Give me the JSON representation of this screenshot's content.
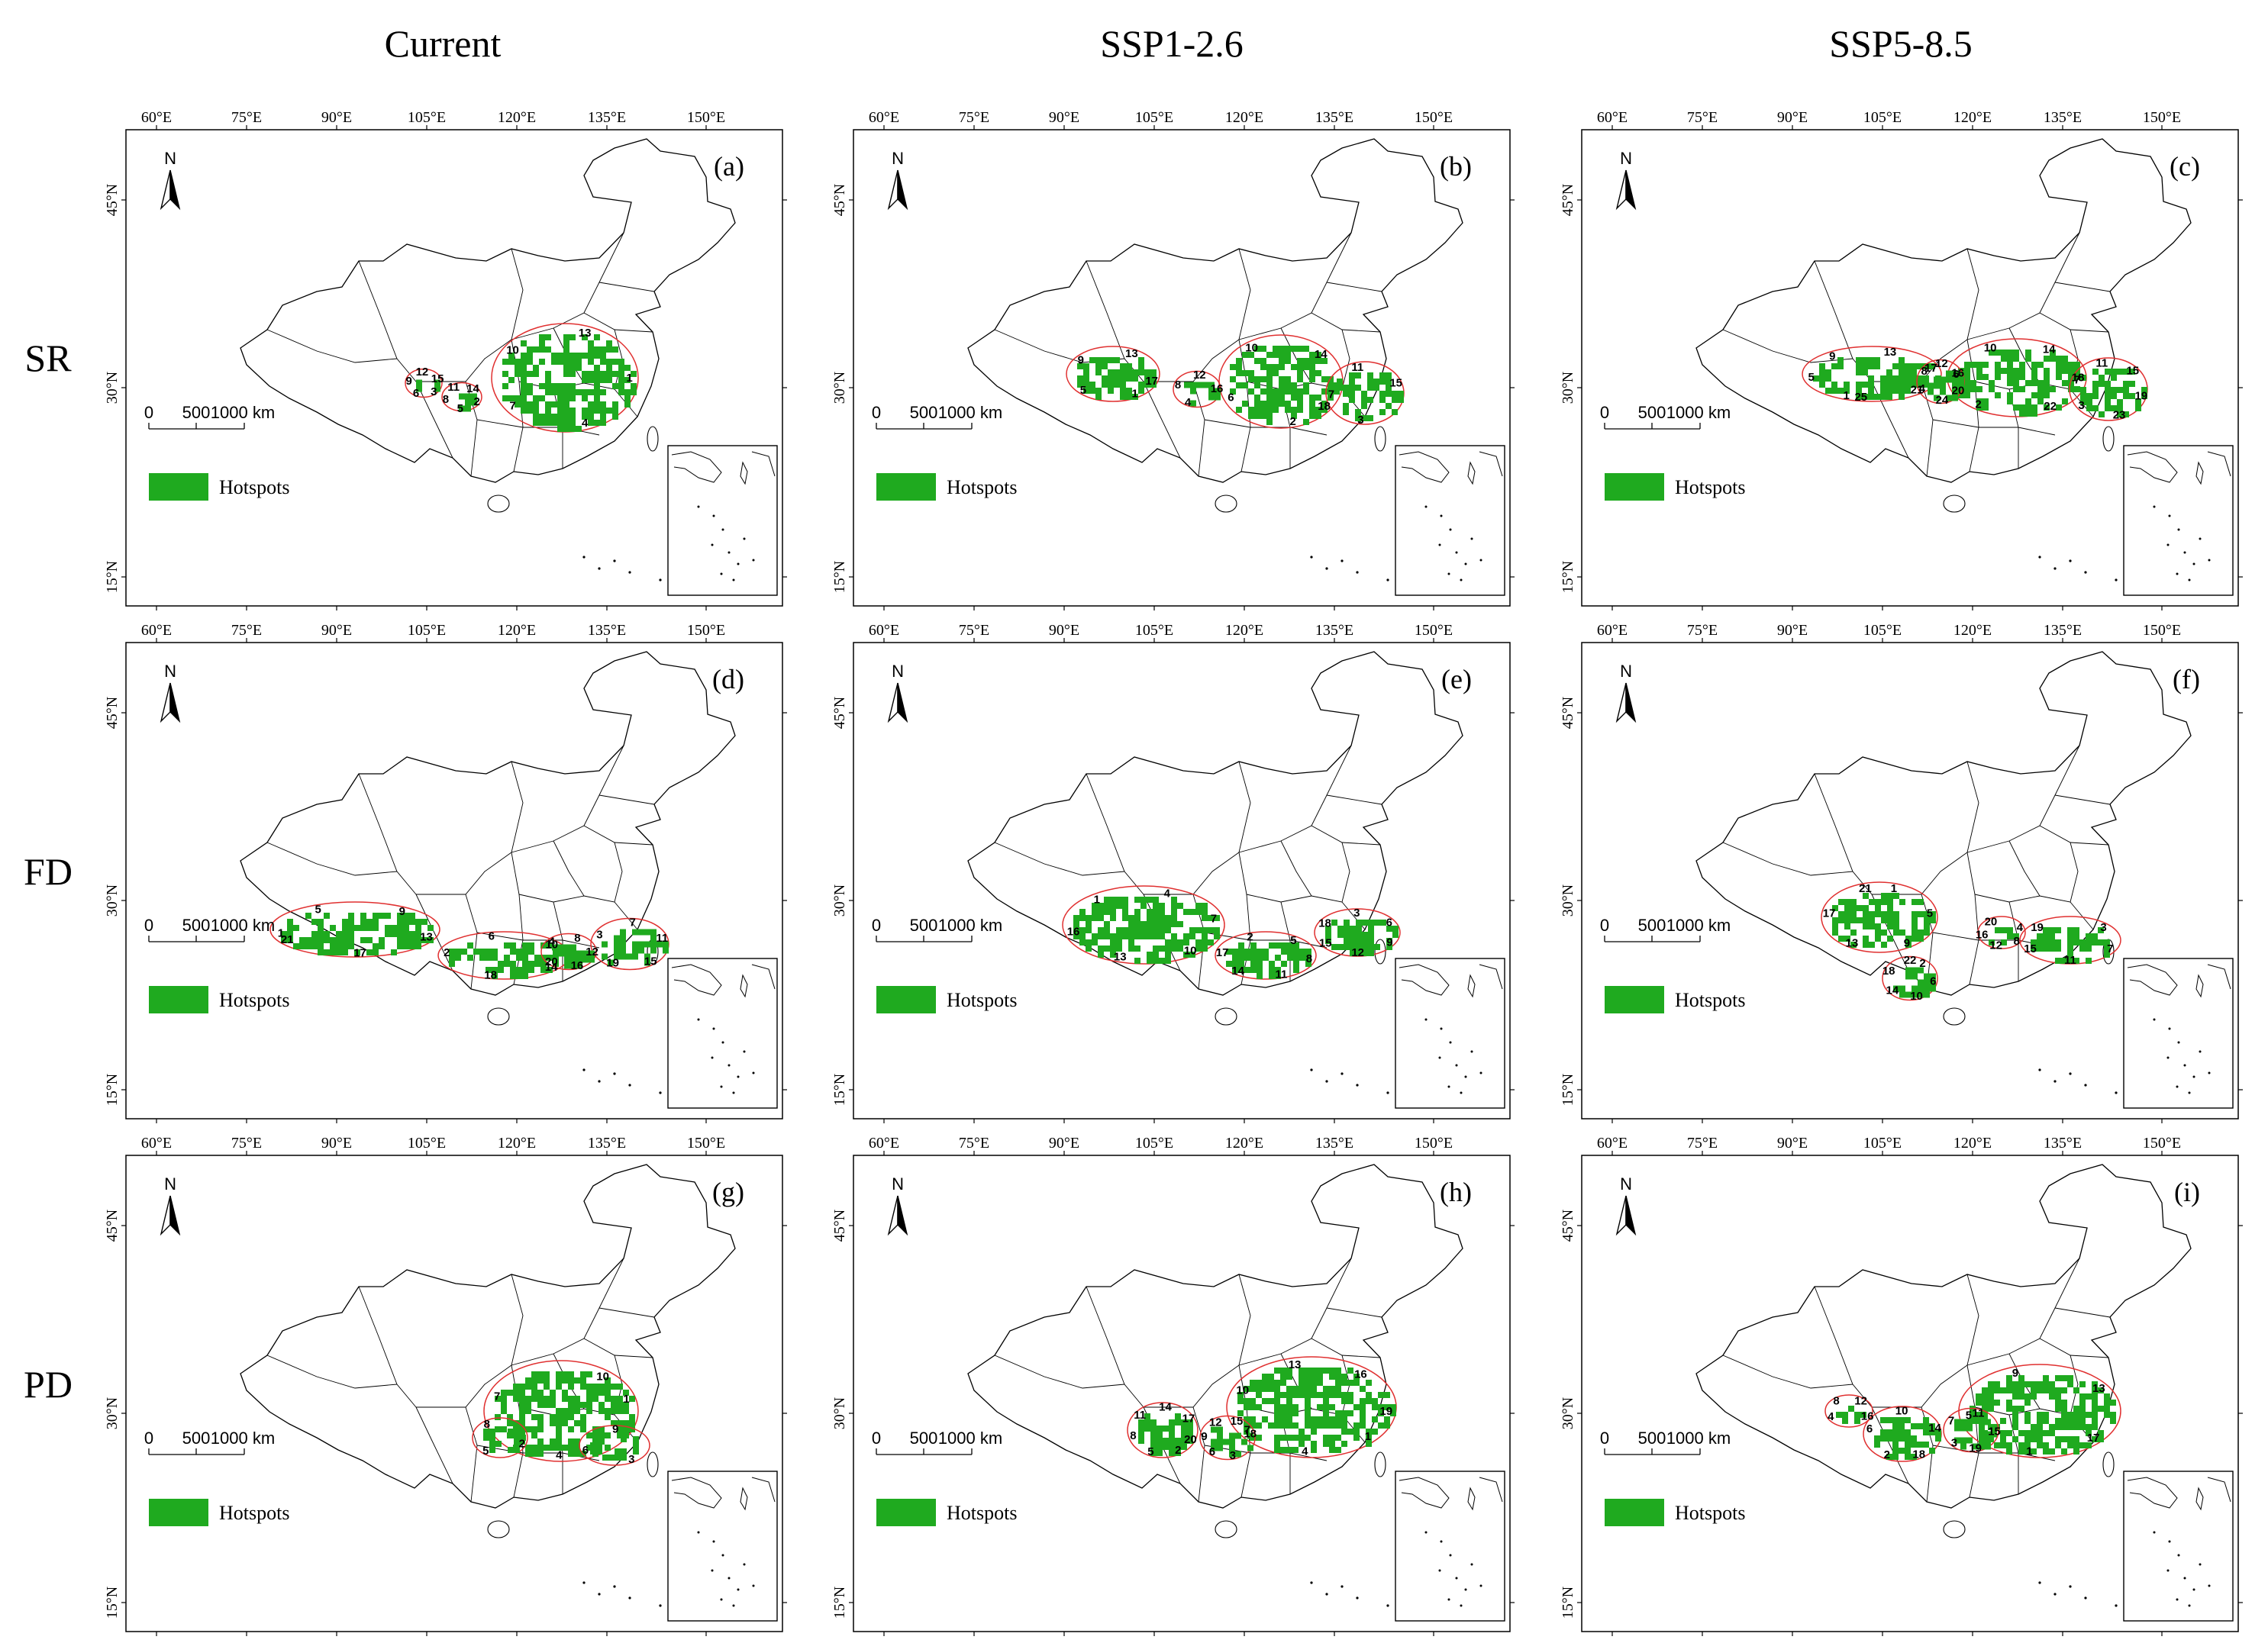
{
  "columns": [
    {
      "key": "current",
      "label": "Current"
    },
    {
      "key": "ssp126",
      "label": "SSP1-2.6"
    },
    {
      "key": "ssp585",
      "label": "SSP5-8.5"
    }
  ],
  "rows": [
    {
      "key": "sr",
      "label": "SR"
    },
    {
      "key": "fd",
      "label": "FD"
    },
    {
      "key": "pd",
      "label": "PD"
    }
  ],
  "axes": {
    "longitude_ticks": [
      "60°E",
      "75°E",
      "90°E",
      "105°E",
      "120°E",
      "135°E",
      "150°E"
    ],
    "latitude_ticks": [
      "45°N",
      "30°N",
      "15°N"
    ]
  },
  "common": {
    "north_label": "N",
    "scale_labels": [
      "0",
      "500",
      "1000 km"
    ],
    "legend_label": "Hotspots",
    "hotspot_color": "#1faa1f",
    "outline_color": "#e03030"
  },
  "panels": [
    {
      "letter": "(a)",
      "row": "sr",
      "column": "current",
      "hotspot_numbers": [
        "1",
        "2",
        "3",
        "4",
        "5",
        "6",
        "7",
        "8",
        "9",
        "10",
        "11",
        "12",
        "13",
        "14",
        "15"
      ]
    },
    {
      "letter": "(b)",
      "row": "sr",
      "column": "ssp126",
      "hotspot_numbers": [
        "1",
        "2",
        "3",
        "4",
        "5",
        "6",
        "7",
        "8",
        "9",
        "10",
        "11",
        "12",
        "13",
        "14",
        "15",
        "16",
        "17",
        "18"
      ]
    },
    {
      "letter": "(c)",
      "row": "sr",
      "column": "ssp585",
      "hotspot_numbers": [
        "1",
        "2",
        "3",
        "4",
        "5",
        "6",
        "7",
        "8",
        "9",
        "10",
        "11",
        "12",
        "13",
        "14",
        "15",
        "16",
        "17",
        "18",
        "19",
        "20",
        "21",
        "22",
        "23",
        "24",
        "25"
      ]
    },
    {
      "letter": "(d)",
      "row": "fd",
      "column": "current",
      "hotspot_numbers": [
        "1",
        "2",
        "3",
        "4",
        "5",
        "6",
        "7",
        "8",
        "9",
        "10",
        "11",
        "12",
        "13",
        "14",
        "15",
        "16",
        "17",
        "18",
        "19",
        "20",
        "21"
      ]
    },
    {
      "letter": "(e)",
      "row": "fd",
      "column": "ssp126",
      "hotspot_numbers": [
        "1",
        "2",
        "3",
        "4",
        "5",
        "6",
        "7",
        "8",
        "9",
        "10",
        "11",
        "12",
        "13",
        "14",
        "15",
        "16",
        "17",
        "18"
      ]
    },
    {
      "letter": "(f)",
      "row": "fd",
      "column": "ssp585",
      "hotspot_numbers": [
        "1",
        "2",
        "3",
        "4",
        "5",
        "6",
        "7",
        "8",
        "9",
        "10",
        "11",
        "12",
        "13",
        "14",
        "15",
        "16",
        "17",
        "18",
        "19",
        "20",
        "21",
        "22"
      ]
    },
    {
      "letter": "(g)",
      "row": "pd",
      "column": "current",
      "hotspot_numbers": [
        "1",
        "2",
        "3",
        "4",
        "5",
        "6",
        "7",
        "8",
        "9",
        "10"
      ]
    },
    {
      "letter": "(h)",
      "row": "pd",
      "column": "ssp126",
      "hotspot_numbers": [
        "1",
        "2",
        "3",
        "4",
        "5",
        "6",
        "7",
        "8",
        "9",
        "10",
        "11",
        "12",
        "13",
        "14",
        "15",
        "16",
        "17",
        "18",
        "19",
        "20"
      ]
    },
    {
      "letter": "(i)",
      "row": "pd",
      "column": "ssp585",
      "hotspot_numbers": [
        "1",
        "2",
        "3",
        "4",
        "5",
        "6",
        "7",
        "8",
        "9",
        "10",
        "11",
        "12",
        "13",
        "14",
        "15",
        "16",
        "17",
        "18",
        "19"
      ]
    }
  ]
}
